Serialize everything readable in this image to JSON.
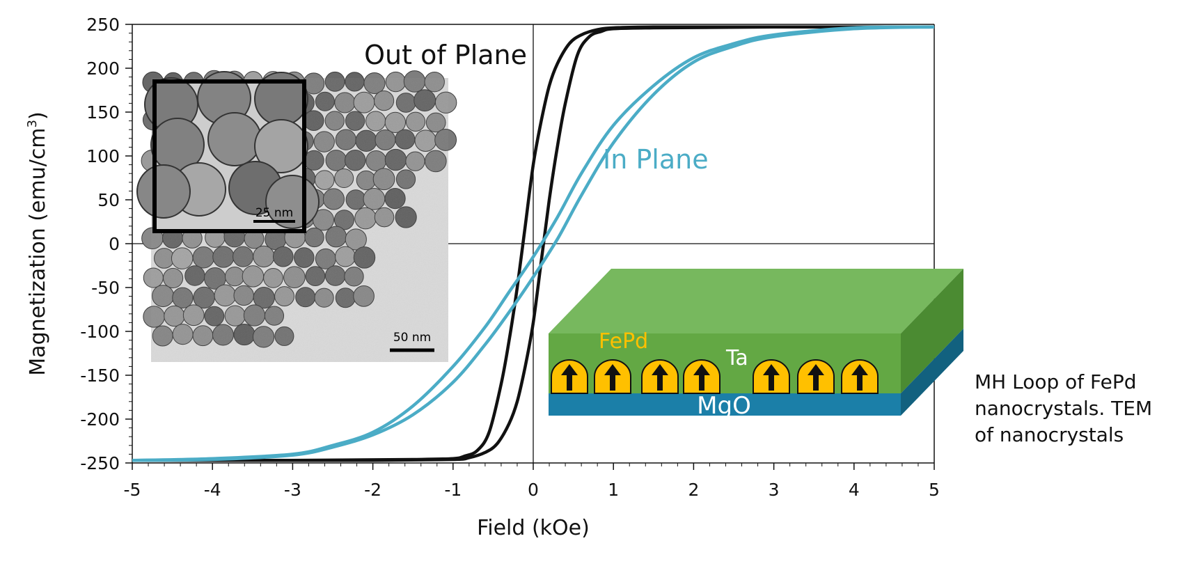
{
  "chart_data": {
    "type": "line",
    "xlabel": "Field (kOe)",
    "ylabel": "Magnetization (emu/cm",
    "ylabel_superscript": "3",
    "ylabel_close": ")",
    "xlim": [
      -5,
      5
    ],
    "ylim": [
      -250,
      250
    ],
    "xticks": [
      "-5",
      "-4",
      "-3",
      "-2",
      "-1",
      "0",
      "1",
      "2",
      "3",
      "4",
      "5"
    ],
    "yticks": [
      "250",
      "200",
      "150",
      "100",
      "50",
      "0",
      "-50",
      "-100",
      "-150",
      "-200",
      "-250"
    ],
    "grid": false,
    "annotations": {
      "out_of_plane": "Out of Plane",
      "in_plane": "In Plane"
    },
    "series": [
      {
        "name": "Out of Plane",
        "color": "#111111",
        "branches": [
          {
            "x": [
              -5,
              -3,
              -1.5,
              -1.0,
              -0.85,
              -0.7,
              -0.55,
              -0.4,
              -0.3,
              -0.2,
              -0.1,
              0.0,
              0.1,
              0.2,
              0.3,
              0.45,
              0.6,
              0.8,
              1.0,
              1.5,
              2,
              3,
              5
            ],
            "y": [
              -247,
              -247,
              -246,
              -245,
              -242,
              -236,
              -215,
              -160,
              -110,
              -50,
              20,
              90,
              140,
              180,
              205,
              228,
              238,
              244,
              246,
              247,
              247,
              247,
              247
            ]
          },
          {
            "x": [
              -5,
              -3,
              -2,
              -1.0,
              -0.8,
              -0.6,
              -0.45,
              -0.3,
              -0.2,
              -0.1,
              0.0,
              0.1,
              0.2,
              0.3,
              0.4,
              0.55,
              0.7,
              0.85,
              1.0,
              1.5,
              3,
              5
            ],
            "y": [
              -247,
              -247,
              -247,
              -246,
              -244,
              -238,
              -228,
              -205,
              -180,
              -140,
              -90,
              -20,
              50,
              110,
              160,
              215,
              236,
              242,
              245,
              246,
              247,
              247
            ]
          }
        ]
      },
      {
        "name": "In Plane",
        "color": "#4bacc6",
        "branches": [
          {
            "x": [
              -5,
              -4,
              -3,
              -2.5,
              -2,
              -1.5,
              -1.0,
              -0.6,
              -0.3,
              0.0,
              0.3,
              0.6,
              1.0,
              1.5,
              2.0,
              2.5,
              3.0,
              4.0,
              5
            ],
            "y": [
              -247,
              -245,
              -240,
              -230,
              -215,
              -185,
              -140,
              -95,
              -55,
              -15,
              30,
              80,
              135,
              180,
              212,
              228,
              238,
              246,
              247
            ]
          },
          {
            "x": [
              -5,
              -4,
              -3,
              -2.5,
              -2,
              -1.5,
              -1.0,
              -0.6,
              -0.3,
              0.0,
              0.3,
              0.6,
              1.0,
              1.5,
              2.0,
              2.5,
              3.0,
              4.0,
              5
            ],
            "y": [
              -247,
              -246,
              -241,
              -232,
              -218,
              -195,
              -158,
              -115,
              -78,
              -38,
              5,
              55,
              115,
              170,
              207,
              225,
              236,
              245,
              247
            ]
          }
        ]
      }
    ]
  },
  "inset_tem": {
    "scale_main": "50 nm",
    "scale_zoom": "25 nm"
  },
  "diagram": {
    "layer_top": "FePd",
    "layer_mid": "Ta",
    "layer_bottom": "MgO",
    "colors": {
      "green_top": "#77b85e",
      "green_front": "#63a844",
      "green_side": "#4b8b32",
      "blue_front": "#1b7fa8",
      "blue_side": "#12617f",
      "gold": "#ffc000"
    }
  },
  "caption": {
    "line1": "MH Loop of FePd",
    "line2": "nanocrystals.  TEM",
    "line3": "of nanocrystals"
  }
}
